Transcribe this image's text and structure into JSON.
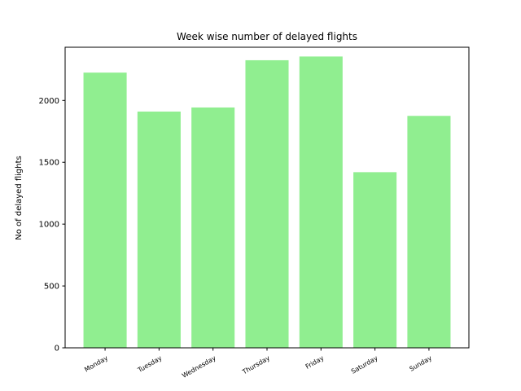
{
  "chart_data": {
    "type": "bar",
    "title": "Week wise number of delayed flights",
    "xlabel": "",
    "ylabel": "No of delayed flights",
    "categories": [
      "Monday",
      "Tuesday",
      "Wednesday",
      "Thursday",
      "Friday",
      "Saturday",
      "Sunday"
    ],
    "values": [
      2225,
      1910,
      1943,
      2325,
      2355,
      1420,
      1875
    ],
    "ylim": [
      0,
      2430
    ],
    "yticks": [
      0,
      500,
      1000,
      1500,
      2000
    ],
    "bar_color": "#90ee90",
    "grid": false
  }
}
